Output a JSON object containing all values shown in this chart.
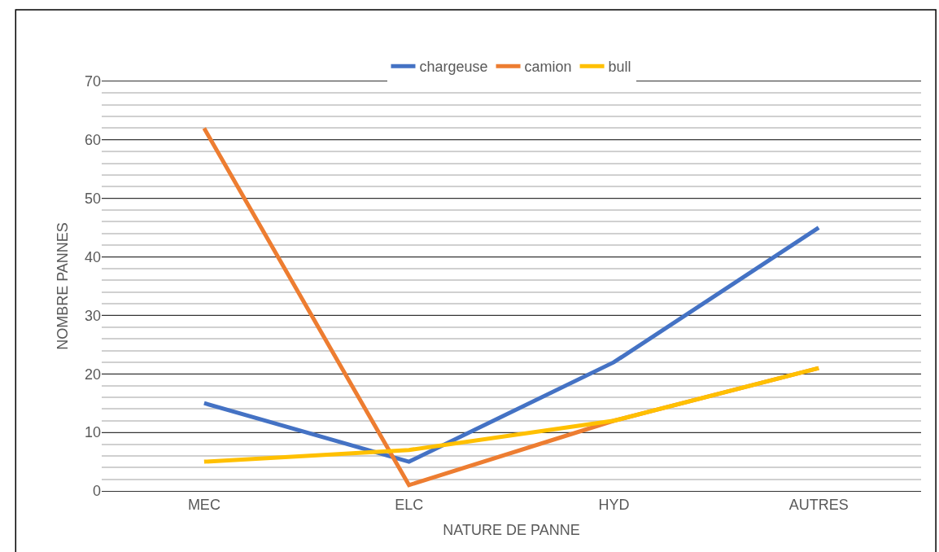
{
  "chart_data": {
    "type": "line",
    "xlabel": "NATURE DE PANNE",
    "ylabel": "NOMBRE PANNES",
    "categories": [
      "MEC",
      "ELC",
      "HYD",
      "AUTRES"
    ],
    "series": [
      {
        "name": "chargeuse",
        "color": "#4472c4",
        "values": [
          15,
          5,
          22,
          45
        ]
      },
      {
        "name": "camion",
        "color": "#ed7d31",
        "values": [
          62,
          1,
          12,
          21
        ]
      },
      {
        "name": "bull",
        "color": "#ffc000",
        "values": [
          5,
          7,
          12,
          21
        ]
      }
    ],
    "ylim": [
      0,
      70
    ],
    "yticks": [
      0,
      {
        "value": 2,
        "label": null
      },
      {
        "value": 4,
        "label": null
      },
      {
        "value": 6,
        "label": null
      },
      {
        "value": 8,
        "label": null
      },
      10,
      {
        "value": 12,
        "label": null
      },
      {
        "value": 14,
        "label": null
      },
      {
        "value": 16,
        "label": null
      },
      {
        "value": 18,
        "label": null
      },
      20,
      {
        "value": 22,
        "label": null
      },
      {
        "value": 24,
        "label": null
      },
      {
        "value": 26,
        "label": null
      },
      {
        "value": 28,
        "label": null
      },
      30,
      {
        "value": 32,
        "label": null
      },
      {
        "value": 34,
        "label": null
      },
      {
        "value": 36,
        "label": null
      },
      {
        "value": 38,
        "label": null
      },
      40,
      {
        "value": 42,
        "label": null
      },
      {
        "value": 44,
        "label": null
      },
      {
        "value": 46,
        "label": null
      },
      {
        "value": 48,
        "label": null
      },
      50,
      {
        "value": 52,
        "label": null
      },
      {
        "value": 54,
        "label": null
      },
      {
        "value": 56,
        "label": null
      },
      {
        "value": 58,
        "label": null
      },
      60,
      {
        "value": 62,
        "label": null
      },
      {
        "value": 64,
        "label": null
      },
      {
        "value": 66,
        "label": null
      },
      {
        "value": 68,
        "label": null
      },
      70
    ],
    "grid": "y",
    "legend": "top",
    "marker": "none",
    "line_style": "solid"
  }
}
